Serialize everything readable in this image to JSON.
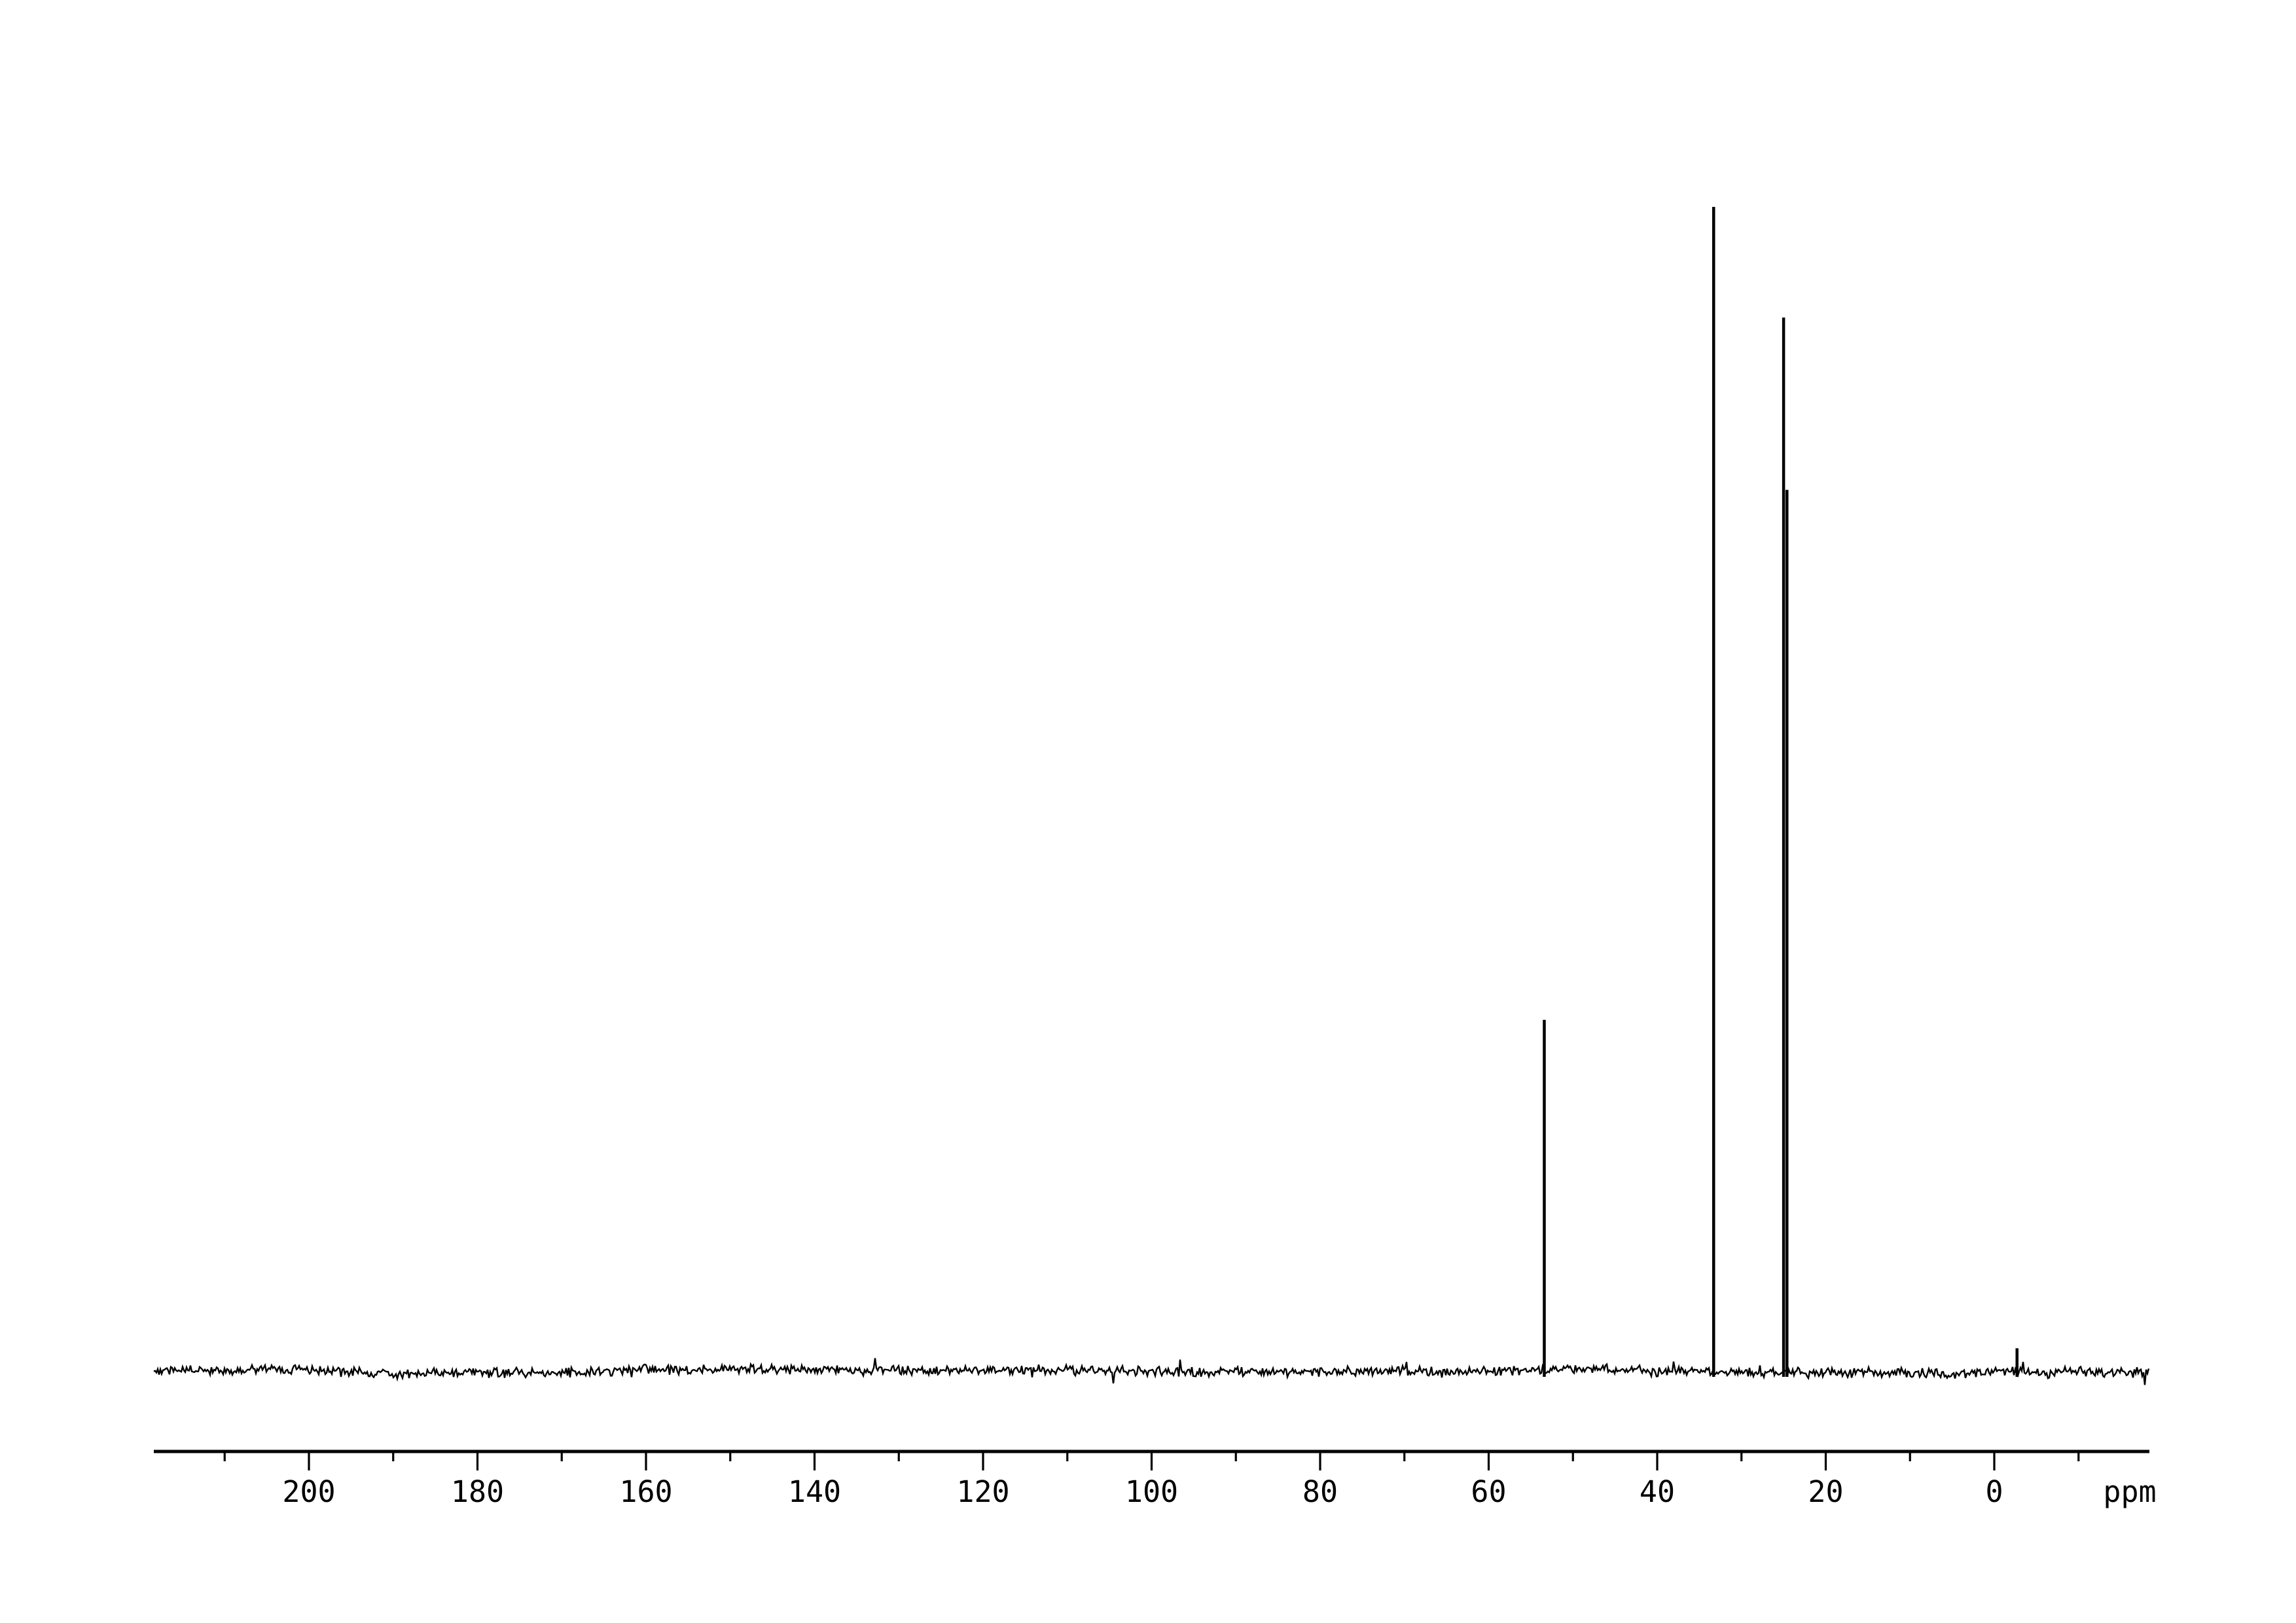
{
  "figure": {
    "background_color": "#ffffff",
    "ink_color": "#000000"
  },
  "chart_data": {
    "type": "line",
    "kind": "nmr-spectrum",
    "title": "",
    "xlabel": "ppm",
    "ylabel": "",
    "grid": false,
    "legend": false,
    "x_axis": {
      "unit_label": "ppm",
      "direction": "reversed",
      "range_ppm": [
        218.4,
        -18.4
      ],
      "major_ticks_ppm": [
        200,
        180,
        160,
        140,
        120,
        100,
        80,
        60,
        40,
        20,
        0
      ],
      "major_tick_labels": [
        "200",
        "180",
        "160",
        "140",
        "120",
        "100",
        "80",
        "60",
        "40",
        "20",
        "0"
      ],
      "minor_ticks_ppm": [
        210,
        190,
        170,
        150,
        130,
        110,
        90,
        70,
        50,
        30,
        10,
        -10
      ]
    },
    "y_axis": {
      "visible": false
    },
    "series": [
      {
        "name": "spectrum-trace",
        "color": "#000000",
        "baseline_relative_intensity": 0.0,
        "noise_relative_amplitude": 0.005,
        "peaks": [
          {
            "ppm": 53.4,
            "relative_intensity": 0.302
          },
          {
            "ppm": 33.3,
            "relative_intensity": 1.0
          },
          {
            "ppm": 25.0,
            "relative_intensity": 0.905
          },
          {
            "ppm": 24.6,
            "relative_intensity": 0.757
          },
          {
            "ppm": -2.7,
            "relative_intensity": 0.02
          }
        ]
      }
    ]
  }
}
